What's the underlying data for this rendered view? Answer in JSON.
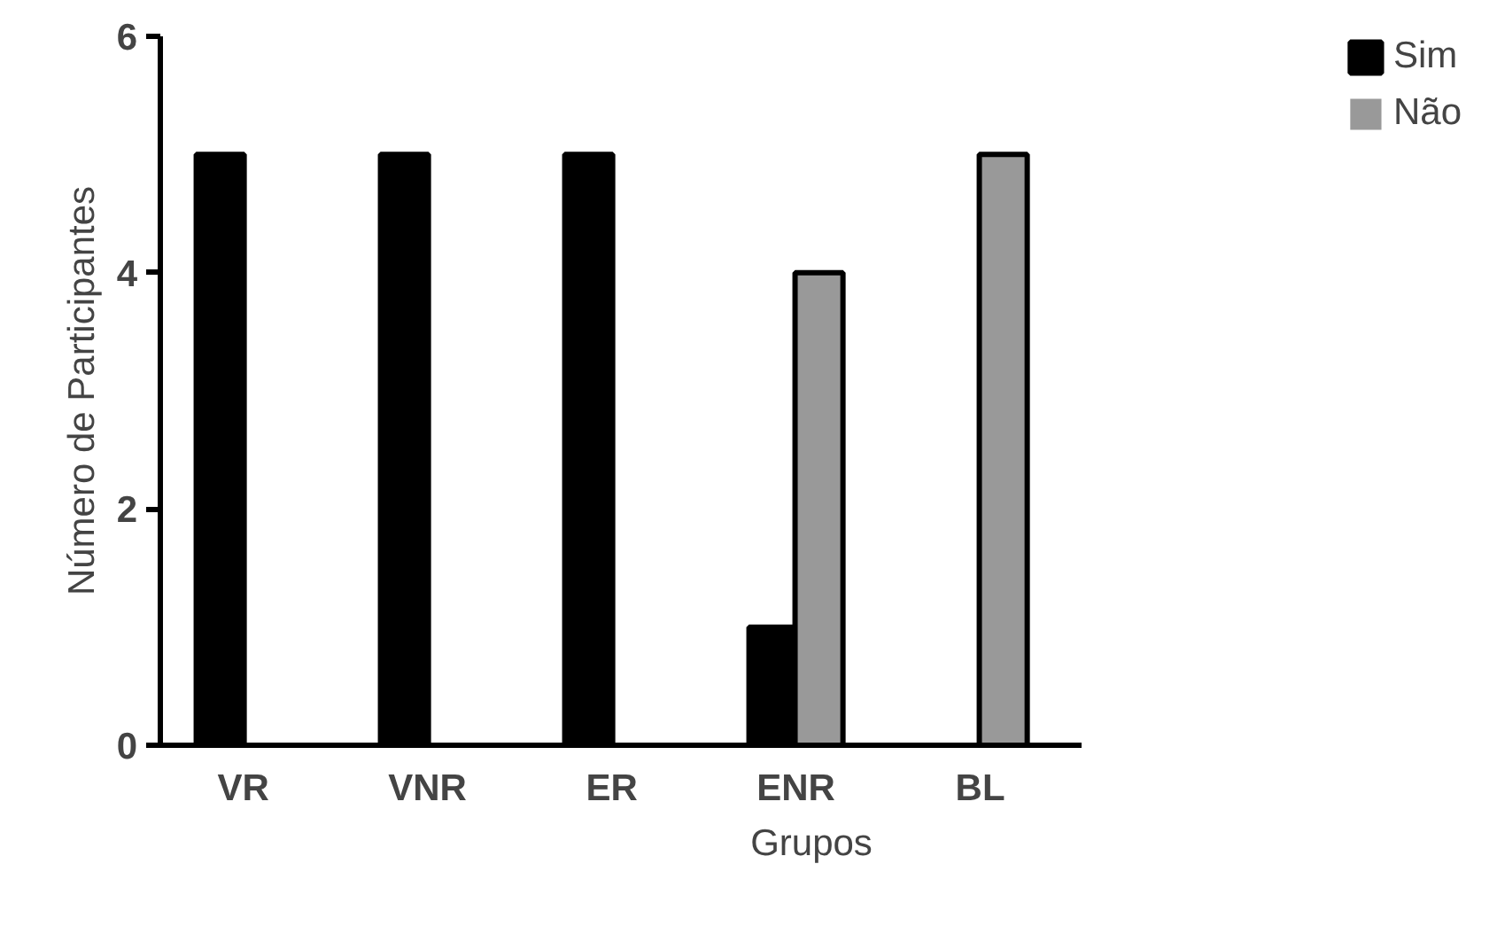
{
  "chart_data": {
    "type": "bar",
    "xlabel": "Grupos",
    "ylabel": "Número de Participantes",
    "categories": [
      "VR",
      "VNR",
      "ER",
      "ENR",
      "BL"
    ],
    "series": [
      {
        "name": "Sim",
        "color": "#000000",
        "values": [
          5,
          5,
          5,
          1,
          0
        ]
      },
      {
        "name": "Não",
        "color": "#999999",
        "values": [
          0,
          0,
          0,
          4,
          5
        ]
      }
    ],
    "ylim": [
      0,
      6
    ],
    "yticks": [
      0,
      2,
      4,
      6
    ],
    "grid": false,
    "legend": "top right"
  }
}
